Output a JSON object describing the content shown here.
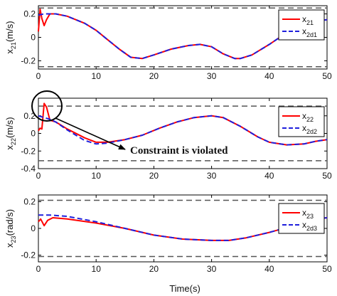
{
  "figure": {
    "xlabel": "Time(s)",
    "annotation": "Constraint is violated"
  },
  "colors": {
    "actual": "#ff0000",
    "desired": "#1f1fdc",
    "constraint": "#555555",
    "axis": "#000000"
  },
  "chart_data": [
    {
      "type": "line",
      "ylabel_main": "x",
      "ylabel_sub": "21",
      "ylabel_unit": "(m/s)",
      "xlim": [
        0,
        50
      ],
      "ylim": [
        -0.27,
        0.27
      ],
      "xticks": [
        0,
        10,
        20,
        30,
        40,
        50
      ],
      "yticks": [
        {
          "v": 0.2,
          "t": "0.2"
        },
        {
          "v": 0,
          "t": "0"
        },
        {
          "v": -0.2,
          "t": "-0.2"
        }
      ],
      "constraints": [
        0.25,
        -0.25
      ],
      "legend": [
        {
          "main": "x",
          "sub": "21",
          "style": "solid"
        },
        {
          "main": "x",
          "sub": "2d1",
          "style": "dashed"
        }
      ],
      "series": [
        {
          "style": "solid",
          "points": [
            [
              0,
              0.05
            ],
            [
              0.3,
              0.24
            ],
            [
              0.6,
              0.16
            ],
            [
              1,
              0.1
            ],
            [
              1.4,
              0.15
            ],
            [
              2,
              0.2
            ],
            [
              3,
              0.2
            ],
            [
              5,
              0.18
            ],
            [
              8,
              0.12
            ],
            [
              10,
              0.06
            ],
            [
              12,
              -0.02
            ],
            [
              14,
              -0.1
            ],
            [
              16,
              -0.17
            ],
            [
              18,
              -0.18
            ],
            [
              20,
              -0.15
            ],
            [
              23,
              -0.1
            ],
            [
              26,
              -0.07
            ],
            [
              28,
              -0.06
            ],
            [
              30,
              -0.08
            ],
            [
              32,
              -0.14
            ],
            [
              34,
              -0.18
            ],
            [
              35,
              -0.18
            ],
            [
              37,
              -0.15
            ],
            [
              40,
              -0.06
            ],
            [
              43,
              0.04
            ],
            [
              46,
              0.11
            ],
            [
              48,
              0.14
            ],
            [
              50,
              0.15
            ]
          ]
        },
        {
          "style": "dashed",
          "points": [
            [
              0,
              0.19
            ],
            [
              1,
              0.2
            ],
            [
              2,
              0.2
            ],
            [
              3,
              0.2
            ],
            [
              5,
              0.18
            ],
            [
              8,
              0.12
            ],
            [
              10,
              0.06
            ],
            [
              12,
              -0.02
            ],
            [
              14,
              -0.1
            ],
            [
              16,
              -0.17
            ],
            [
              18,
              -0.18
            ],
            [
              20,
              -0.15
            ],
            [
              23,
              -0.1
            ],
            [
              26,
              -0.07
            ],
            [
              28,
              -0.06
            ],
            [
              30,
              -0.08
            ],
            [
              32,
              -0.14
            ],
            [
              34,
              -0.18
            ],
            [
              35,
              -0.18
            ],
            [
              37,
              -0.15
            ],
            [
              40,
              -0.06
            ],
            [
              43,
              0.04
            ],
            [
              46,
              0.11
            ],
            [
              48,
              0.14
            ],
            [
              50,
              0.15
            ]
          ]
        }
      ]
    },
    {
      "type": "line",
      "ylabel_main": "x",
      "ylabel_sub": "22",
      "ylabel_unit": "(m/s)",
      "xlim": [
        0,
        50
      ],
      "ylim": [
        -0.4,
        0.4
      ],
      "xticks": [
        0,
        10,
        20,
        30,
        40,
        50
      ],
      "yticks": [
        {
          "v": 0.2,
          "t": "0.2"
        },
        {
          "v": 0,
          "t": "0"
        },
        {
          "v": -0.2,
          "t": "-0.2"
        },
        {
          "v": -0.4,
          "t": "-0.4"
        }
      ],
      "constraints": [
        0.31,
        -0.31
      ],
      "legend": [
        {
          "main": "x",
          "sub": "22",
          "style": "solid"
        },
        {
          "main": "x",
          "sub": "2d2",
          "style": "dashed"
        }
      ],
      "series": [
        {
          "style": "solid",
          "points": [
            [
              0,
              0.03
            ],
            [
              0.3,
              0.06
            ],
            [
              0.6,
              0.05
            ],
            [
              1,
              0.34
            ],
            [
              1.4,
              0.3
            ],
            [
              2,
              0.15
            ],
            [
              3,
              0.13
            ],
            [
              5,
              0.05
            ],
            [
              8,
              -0.05
            ],
            [
              10,
              -0.1
            ],
            [
              12,
              -0.1
            ],
            [
              15,
              -0.07
            ],
            [
              18,
              -0.02
            ],
            [
              21,
              0.06
            ],
            [
              24,
              0.13
            ],
            [
              27,
              0.18
            ],
            [
              30,
              0.2
            ],
            [
              32,
              0.18
            ],
            [
              35,
              0.08
            ],
            [
              38,
              -0.04
            ],
            [
              40,
              -0.1
            ],
            [
              43,
              -0.13
            ],
            [
              46,
              -0.12
            ],
            [
              48,
              -0.09
            ],
            [
              50,
              -0.07
            ]
          ]
        },
        {
          "style": "dashed",
          "points": [
            [
              0,
              0.2
            ],
            [
              1,
              0.18
            ],
            [
              2,
              0.16
            ],
            [
              3,
              0.13
            ],
            [
              5,
              0.04
            ],
            [
              8,
              -0.08
            ],
            [
              10,
              -0.12
            ],
            [
              12,
              -0.11
            ],
            [
              15,
              -0.07
            ],
            [
              18,
              -0.02
            ],
            [
              21,
              0.06
            ],
            [
              24,
              0.13
            ],
            [
              27,
              0.18
            ],
            [
              30,
              0.2
            ],
            [
              32,
              0.18
            ],
            [
              35,
              0.08
            ],
            [
              38,
              -0.04
            ],
            [
              40,
              -0.1
            ],
            [
              43,
              -0.13
            ],
            [
              46,
              -0.12
            ],
            [
              48,
              -0.09
            ],
            [
              50,
              -0.07
            ]
          ]
        }
      ]
    },
    {
      "type": "line",
      "ylabel_main": "x",
      "ylabel_sub": "23",
      "ylabel_unit": "(rad/s)",
      "xlim": [
        0,
        50
      ],
      "ylim": [
        -0.25,
        0.25
      ],
      "xticks": [
        0,
        10,
        20,
        30,
        40,
        50
      ],
      "yticks": [
        {
          "v": 0.2,
          "t": "0.2"
        },
        {
          "v": 0,
          "t": "0"
        },
        {
          "v": -0.2,
          "t": "-0.2"
        }
      ],
      "constraints": [
        0.21,
        -0.21
      ],
      "legend": [
        {
          "main": "x",
          "sub": "23",
          "style": "solid"
        },
        {
          "main": "x",
          "sub": "2d3",
          "style": "dashed"
        }
      ],
      "series": [
        {
          "style": "solid",
          "points": [
            [
              0,
              0.05
            ],
            [
              0.4,
              0.07
            ],
            [
              1,
              0.02
            ],
            [
              1.6,
              0.06
            ],
            [
              2.5,
              0.08
            ],
            [
              5,
              0.07
            ],
            [
              10,
              0.04
            ],
            [
              15,
              0.0
            ],
            [
              20,
              -0.05
            ],
            [
              25,
              -0.08
            ],
            [
              30,
              -0.09
            ],
            [
              33,
              -0.09
            ],
            [
              36,
              -0.07
            ],
            [
              40,
              -0.03
            ],
            [
              45,
              0.03
            ],
            [
              48,
              0.07
            ],
            [
              50,
              0.08
            ]
          ]
        },
        {
          "style": "dashed",
          "points": [
            [
              0,
              0.1
            ],
            [
              2,
              0.1
            ],
            [
              5,
              0.09
            ],
            [
              10,
              0.05
            ],
            [
              15,
              0.0
            ],
            [
              20,
              -0.05
            ],
            [
              25,
              -0.08
            ],
            [
              30,
              -0.09
            ],
            [
              33,
              -0.09
            ],
            [
              36,
              -0.07
            ],
            [
              40,
              -0.03
            ],
            [
              45,
              0.03
            ],
            [
              48,
              0.07
            ],
            [
              50,
              0.08
            ]
          ]
        }
      ]
    }
  ]
}
